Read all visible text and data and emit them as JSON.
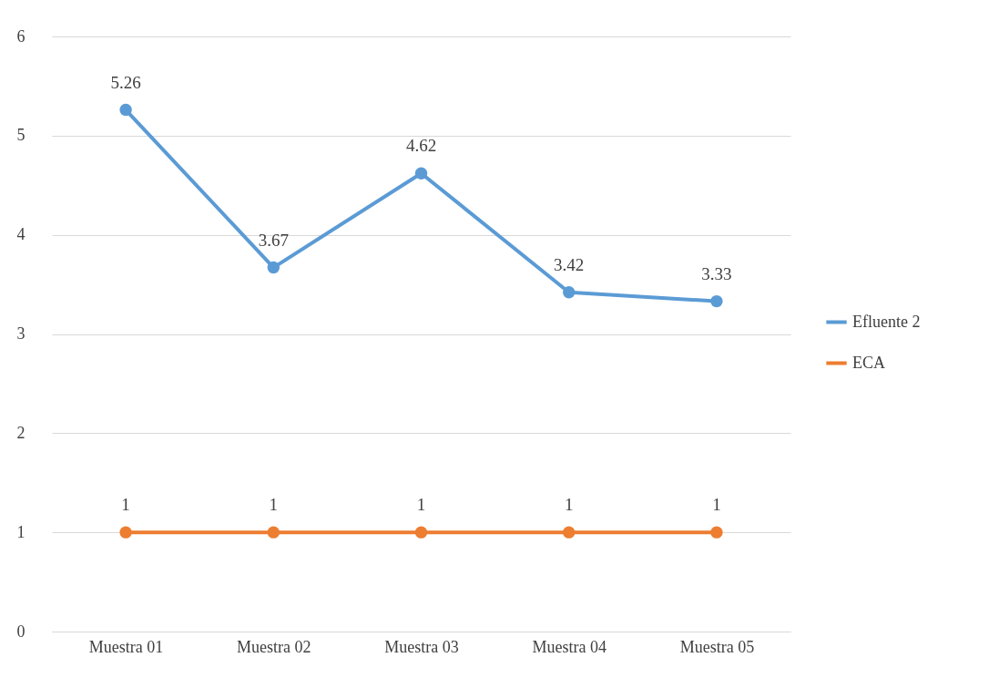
{
  "chart_data": {
    "type": "line",
    "categories": [
      "Muestra 01",
      "Muestra 02",
      "Muestra 03",
      "Muestra 04",
      "Muestra 05"
    ],
    "series": [
      {
        "name": "Efluente 2",
        "color": "#5b9bd5",
        "values": [
          5.26,
          3.67,
          4.62,
          3.42,
          3.33
        ]
      },
      {
        "name": "ECA",
        "color": "#ed7d31",
        "values": [
          1,
          1,
          1,
          1,
          1
        ]
      }
    ],
    "ylim": [
      0,
      6
    ],
    "yticks": [
      0,
      1,
      2,
      3,
      4,
      5,
      6
    ],
    "grid": "y",
    "legend": "right",
    "marker": "circle",
    "line_style": "solid",
    "data_labels": true
  }
}
